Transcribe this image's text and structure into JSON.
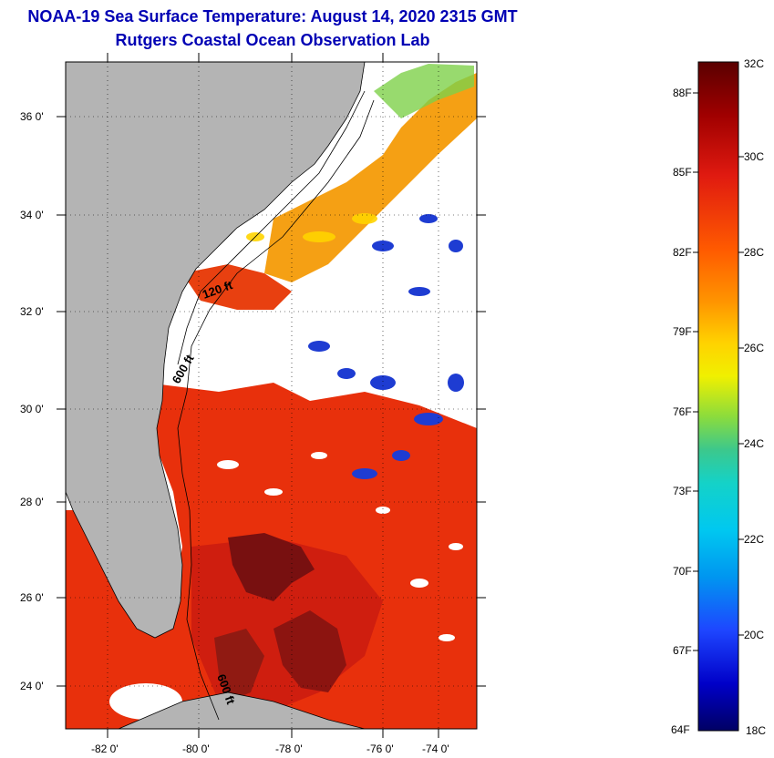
{
  "title": "NOAA-19 Sea Surface Temperature:  August 14, 2020 2315 GMT",
  "subtitle": "Rutgers Coastal Ocean Observation Lab",
  "map": {
    "lat_ticks": [
      "36 0'",
      "34 0'",
      "32 0'",
      "30 0'",
      "28 0'",
      "26 0'",
      "24 0'"
    ],
    "lon_ticks": [
      "-82 0'",
      "-80 0'",
      "-78 0'",
      "-76 0'",
      "-74 0'"
    ],
    "contour_labels": [
      "120 ft",
      "600 ft",
      "600 ft"
    ],
    "colors": {
      "land": "#b4b4b4",
      "cloud": "#ffffff",
      "warm_water": "#e8280a"
    }
  },
  "colorbar": {
    "fahrenheit": [
      "88F",
      "85F",
      "82F",
      "79F",
      "76F",
      "73F",
      "70F",
      "67F",
      "64F"
    ],
    "celsius": [
      "32C",
      "30C",
      "28C",
      "26C",
      "24C",
      "22C",
      "20C",
      "18C"
    ]
  }
}
